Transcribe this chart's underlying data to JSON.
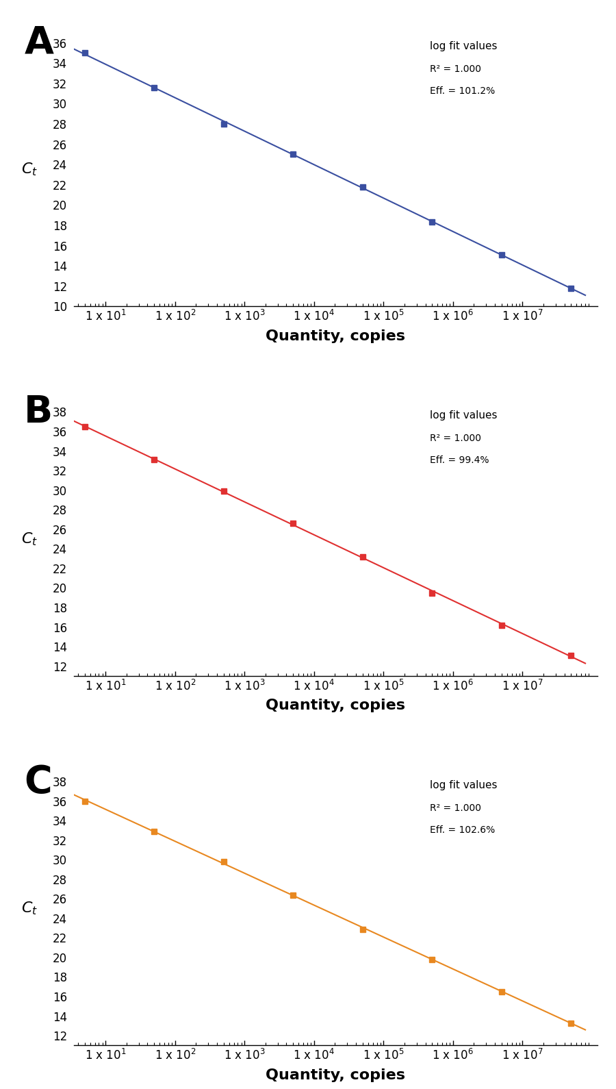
{
  "panels": [
    {
      "label": "A",
      "color": "#3A4FA0",
      "r2": "1.000",
      "eff": "101.2%",
      "ylim": [
        10,
        37
      ],
      "yticks": [
        10,
        12,
        14,
        16,
        18,
        20,
        22,
        24,
        26,
        28,
        30,
        32,
        34,
        36
      ],
      "x_data": [
        5,
        50,
        500,
        5000,
        50000,
        500000,
        5000000,
        50000000
      ],
      "y_data": [
        35.0,
        31.6,
        28.0,
        25.0,
        21.8,
        18.3,
        15.1,
        11.8
      ]
    },
    {
      "label": "B",
      "color": "#E03030",
      "r2": "1.000",
      "eff": "99.4%",
      "ylim": [
        11,
        39
      ],
      "yticks": [
        12,
        14,
        16,
        18,
        20,
        22,
        24,
        26,
        28,
        30,
        32,
        34,
        36,
        38
      ],
      "x_data": [
        5,
        50,
        500,
        5000,
        50000,
        500000,
        5000000,
        50000000
      ],
      "y_data": [
        36.5,
        33.1,
        29.9,
        26.6,
        23.2,
        19.5,
        16.2,
        13.1
      ]
    },
    {
      "label": "C",
      "color": "#E88820",
      "r2": "1.000",
      "eff": "102.6%",
      "ylim": [
        11,
        39
      ],
      "yticks": [
        12,
        14,
        16,
        18,
        20,
        22,
        24,
        26,
        28,
        30,
        32,
        34,
        36,
        38
      ],
      "x_data": [
        5,
        50,
        500,
        5000,
        50000,
        500000,
        5000000,
        50000000
      ],
      "y_data": [
        36.0,
        32.9,
        29.8,
        26.4,
        22.9,
        19.8,
        16.5,
        13.3
      ]
    }
  ],
  "xlabel": "Quantity, copies",
  "ylabel": "C",
  "ylabel_sub": "t",
  "annotation_title": "log fit values",
  "xtick_positions": [
    10,
    100,
    1000,
    10000,
    100000,
    1000000,
    10000000
  ],
  "xtick_labels": [
    "1 x 10$^1$",
    "1 x 10$^2$",
    "1 x 10$^3$",
    "1 x 10$^4$",
    "1 x 10$^5$",
    "1 x 10$^6$",
    "1 x 10$^7$"
  ]
}
